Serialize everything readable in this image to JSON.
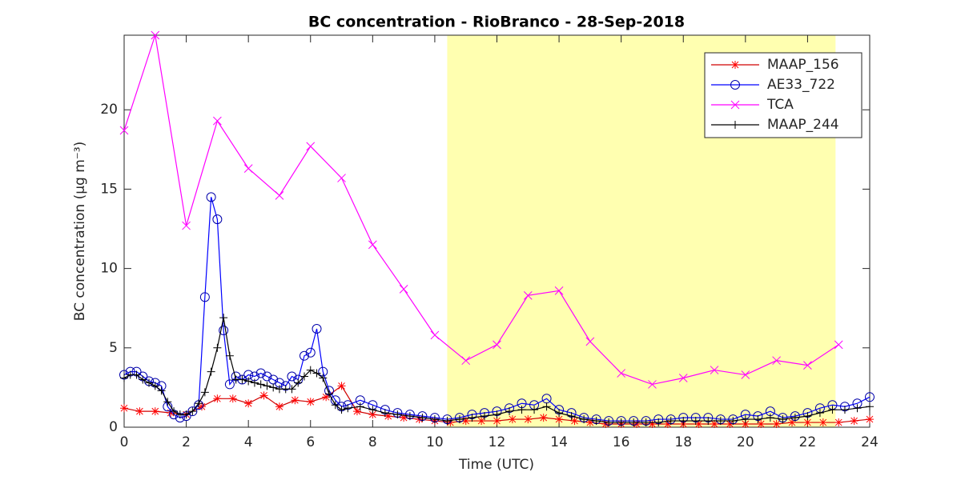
{
  "chart_data": {
    "type": "line",
    "title": "BC concentration  - RioBranco - 28-Sep-2018",
    "x_label": "Time (UTC)",
    "y_label": "BC concentration (μg m⁻³)",
    "xlim": [
      0,
      24
    ],
    "xticks": [
      0,
      2,
      4,
      6,
      8,
      10,
      12,
      14,
      16,
      18,
      20,
      22,
      24
    ],
    "ylim": [
      0,
      24.7
    ],
    "yticks": [
      0,
      5,
      10,
      15,
      20
    ],
    "highlight_x": [
      10.4,
      22.9
    ],
    "highlight_color": "#ffffb0",
    "legend": "top-right",
    "series": [
      {
        "name": "MAAP_156",
        "color": "#ff0000",
        "line_color": "#d00000",
        "marker": "star",
        "x": [
          0,
          0.5,
          1,
          1.5,
          2,
          2.5,
          3,
          3.5,
          4,
          4.5,
          5,
          5.5,
          6,
          6.5,
          7,
          7.5,
          8,
          8.5,
          9,
          9.5,
          10,
          10.5,
          11,
          11.5,
          12,
          12.5,
          13,
          13.5,
          14,
          14.5,
          15,
          15.5,
          16,
          16.5,
          17,
          17.5,
          18,
          18.5,
          19,
          19.5,
          20,
          20.5,
          21,
          21.5,
          22,
          22.5,
          23,
          23.5,
          24
        ],
        "values": [
          1.2,
          1.0,
          1.0,
          0.9,
          0.8,
          1.3,
          1.8,
          1.8,
          1.5,
          2.0,
          1.3,
          1.7,
          1.6,
          1.9,
          2.6,
          1.0,
          0.8,
          0.7,
          0.6,
          0.5,
          0.4,
          0.3,
          0.4,
          0.4,
          0.4,
          0.5,
          0.5,
          0.6,
          0.5,
          0.4,
          0.3,
          0.2,
          0.2,
          0.2,
          0.2,
          0.2,
          0.2,
          0.2,
          0.2,
          0.2,
          0.2,
          0.2,
          0.2,
          0.3,
          0.3,
          0.3,
          0.3,
          0.4,
          0.5
        ]
      },
      {
        "name": "AE33_722",
        "color": "#0000aa",
        "line_color": "#0000ff",
        "marker": "circle",
        "x": [
          0,
          0.2,
          0.4,
          0.6,
          0.8,
          1,
          1.2,
          1.4,
          1.6,
          1.8,
          2,
          2.2,
          2.4,
          2.6,
          2.8,
          3,
          3.2,
          3.4,
          3.6,
          3.8,
          4,
          4.2,
          4.4,
          4.6,
          4.8,
          5,
          5.2,
          5.4,
          5.6,
          5.8,
          6,
          6.2,
          6.4,
          6.6,
          6.8,
          7,
          7.2,
          7.6,
          8,
          8.4,
          8.8,
          9.2,
          9.6,
          10,
          10.4,
          10.8,
          11.2,
          11.6,
          12,
          12.4,
          12.8,
          13.2,
          13.6,
          14,
          14.4,
          14.8,
          15.2,
          15.6,
          16,
          16.4,
          16.8,
          17.2,
          17.6,
          18,
          18.4,
          18.8,
          19.2,
          19.6,
          20,
          20.4,
          20.8,
          21.2,
          21.6,
          22,
          22.4,
          22.8,
          23.2,
          23.6,
          24
        ],
        "values": [
          3.3,
          3.5,
          3.5,
          3.2,
          2.9,
          2.8,
          2.6,
          1.3,
          0.8,
          0.6,
          0.7,
          1.0,
          1.4,
          8.2,
          14.5,
          13.1,
          6.1,
          2.7,
          3.2,
          3.0,
          3.3,
          3.2,
          3.4,
          3.2,
          3.0,
          2.8,
          2.6,
          3.2,
          3.0,
          4.5,
          4.7,
          6.2,
          3.5,
          2.3,
          1.7,
          1.3,
          1.4,
          1.7,
          1.4,
          1.1,
          0.9,
          0.8,
          0.7,
          0.6,
          0.5,
          0.6,
          0.8,
          0.9,
          1.0,
          1.2,
          1.5,
          1.4,
          1.8,
          1.1,
          0.9,
          0.6,
          0.5,
          0.4,
          0.4,
          0.4,
          0.4,
          0.5,
          0.5,
          0.6,
          0.6,
          0.6,
          0.5,
          0.5,
          0.8,
          0.7,
          1.0,
          0.6,
          0.7,
          0.9,
          1.2,
          1.4,
          1.3,
          1.5,
          1.9
        ]
      },
      {
        "name": "TCA",
        "color": "#ff00ff",
        "line_color": "#ff00ff",
        "marker": "x",
        "x": [
          0,
          1,
          2,
          3,
          4,
          5,
          6,
          7,
          8,
          9,
          10,
          11,
          12,
          13,
          14,
          15,
          16,
          17,
          18,
          19,
          20,
          21,
          22,
          23
        ],
        "values": [
          18.7,
          24.7,
          12.7,
          19.3,
          16.3,
          14.6,
          17.7,
          15.7,
          11.5,
          8.7,
          5.8,
          4.2,
          5.2,
          8.3,
          8.6,
          5.4,
          3.4,
          2.7,
          3.1,
          3.6,
          3.3,
          4.2,
          3.9,
          5.2
        ]
      },
      {
        "name": "MAAP_244",
        "color": "#000000",
        "line_color": "#000000",
        "marker": "plus",
        "x": [
          0,
          0.2,
          0.4,
          0.6,
          0.8,
          1,
          1.2,
          1.4,
          1.6,
          1.8,
          2,
          2.2,
          2.4,
          2.6,
          2.8,
          3,
          3.2,
          3.4,
          3.6,
          3.8,
          4,
          4.2,
          4.4,
          4.6,
          4.8,
          5,
          5.2,
          5.4,
          5.6,
          5.8,
          6,
          6.2,
          6.4,
          6.6,
          6.8,
          7,
          7.2,
          7.6,
          8,
          8.4,
          8.8,
          9.2,
          9.6,
          10,
          10.4,
          10.8,
          11.2,
          11.6,
          12,
          12.4,
          12.8,
          13.2,
          13.6,
          14,
          14.4,
          14.8,
          15.2,
          15.6,
          16,
          16.4,
          16.8,
          17.2,
          17.6,
          18,
          18.4,
          18.8,
          19.2,
          19.6,
          20,
          20.4,
          20.8,
          21.2,
          21.6,
          22,
          22.4,
          22.8,
          23.2,
          23.6,
          24
        ],
        "values": [
          3.1,
          3.3,
          3.3,
          3.0,
          2.8,
          2.6,
          2.3,
          1.6,
          1.0,
          0.8,
          0.8,
          1.0,
          1.5,
          2.2,
          3.5,
          5.0,
          6.9,
          4.5,
          3.0,
          3.0,
          2.9,
          2.8,
          2.7,
          2.6,
          2.5,
          2.4,
          2.4,
          2.4,
          2.8,
          3.2,
          3.6,
          3.4,
          3.1,
          2.1,
          1.4,
          1.1,
          1.2,
          1.3,
          1.1,
          0.9,
          0.8,
          0.7,
          0.6,
          0.5,
          0.4,
          0.5,
          0.6,
          0.7,
          0.8,
          1.0,
          1.1,
          1.1,
          1.3,
          0.9,
          0.7,
          0.5,
          0.4,
          0.3,
          0.3,
          0.3,
          0.3,
          0.3,
          0.4,
          0.4,
          0.4,
          0.4,
          0.4,
          0.4,
          0.5,
          0.5,
          0.6,
          0.5,
          0.6,
          0.7,
          0.9,
          1.1,
          1.1,
          1.2,
          1.3
        ]
      }
    ]
  }
}
